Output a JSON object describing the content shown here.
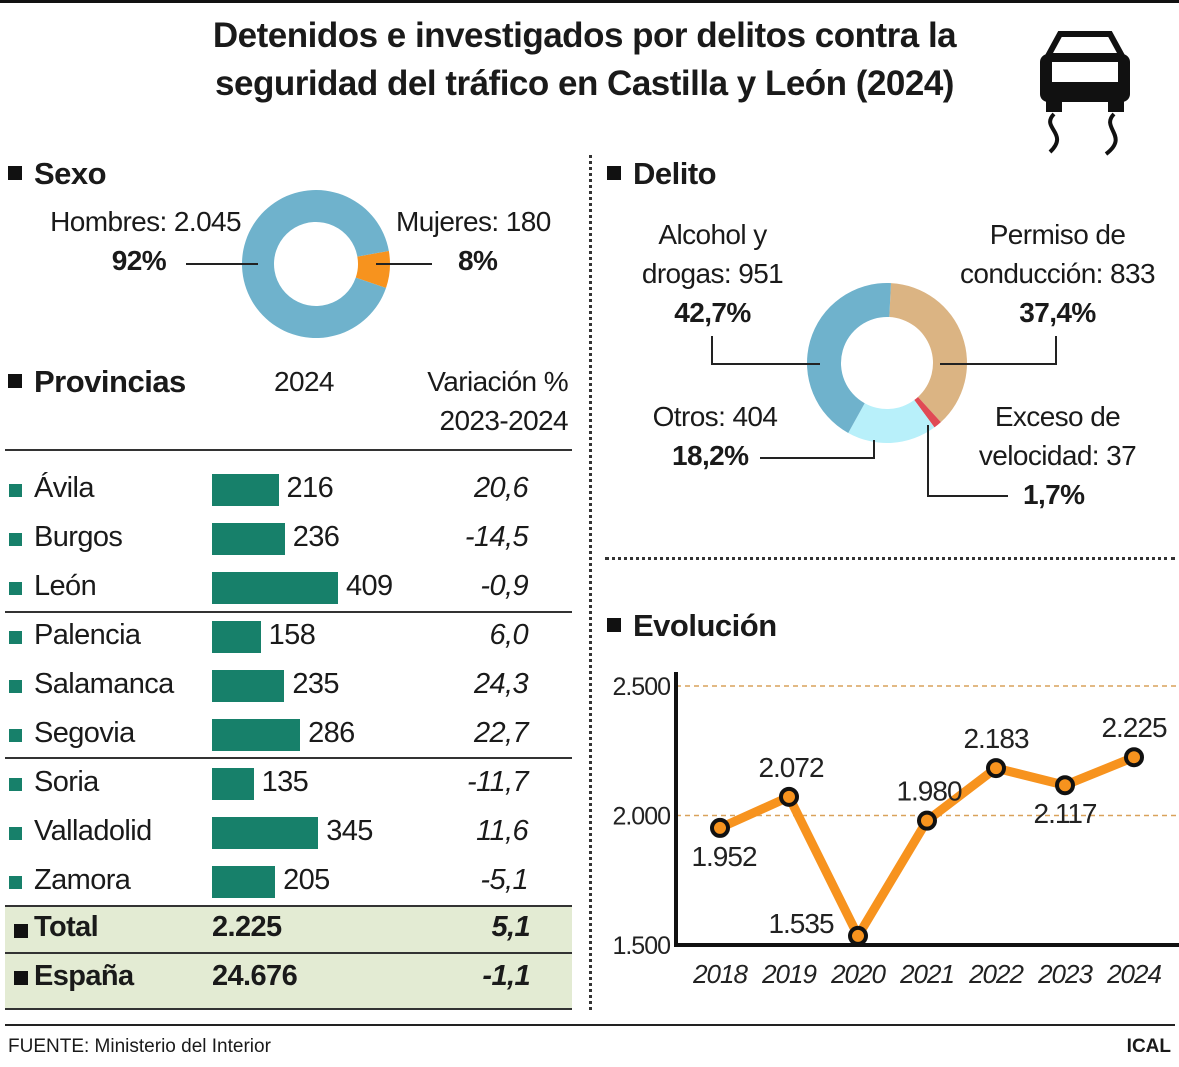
{
  "title": [
    "Detenidos e investigados por delitos contra la",
    "seguridad del tráfico en Castilla y León (2024)"
  ],
  "icons": {
    "header": "car-skidding-icon"
  },
  "colors": {
    "bar": "#17806a",
    "line": "#f7931e",
    "sexo_hombres": "#6fb2cc",
    "sexo_mujeres": "#f7931e",
    "alcohol": "#6fb2cc",
    "permiso": "#dbb483",
    "exceso": "#e04a55",
    "otros": "#b8f0fa",
    "total_bg": "#e3ebd3"
  },
  "sexo": {
    "heading": "Sexo",
    "hombres_label": "Hombres: 2.045",
    "hombres_pct": "92%",
    "mujeres_label": "Mujeres: 180",
    "mujeres_pct": "8%"
  },
  "provincias": {
    "heading": "Provincias",
    "col_year": "2024",
    "col_var": [
      "Variación %",
      "2023-2024"
    ],
    "rows": [
      {
        "name": "Ávila",
        "value": 216,
        "value_label": "216",
        "var": "20,6"
      },
      {
        "name": "Burgos",
        "value": 236,
        "value_label": "236",
        "var": "-14,5"
      },
      {
        "name": "León",
        "value": 409,
        "value_label": "409",
        "var": "-0,9"
      },
      {
        "name": "Palencia",
        "value": 158,
        "value_label": "158",
        "var": "6,0"
      },
      {
        "name": "Salamanca",
        "value": 235,
        "value_label": "235",
        "var": "24,3"
      },
      {
        "name": "Segovia",
        "value": 286,
        "value_label": "286",
        "var": "22,7"
      },
      {
        "name": "Soria",
        "value": 135,
        "value_label": "135",
        "var": "-11,7"
      },
      {
        "name": "Valladolid",
        "value": 345,
        "value_label": "345",
        "var": "11,6"
      },
      {
        "name": "Zamora",
        "value": 205,
        "value_label": "205",
        "var": "-5,1"
      }
    ],
    "totals": [
      {
        "name": "Total",
        "value": "2.225",
        "var": "5,1"
      },
      {
        "name": "España",
        "value": "24.676",
        "var": "-1,1"
      }
    ]
  },
  "delito": {
    "heading": "Delito",
    "alcohol": [
      "Alcohol y",
      "drogas: 951",
      "42,7%"
    ],
    "permiso": [
      "Permiso de",
      "conducción: 833",
      "37,4%"
    ],
    "otros": [
      "Otros: 404",
      "18,2%"
    ],
    "exceso": [
      "Exceso de",
      "velocidad: 37",
      "1,7%"
    ]
  },
  "chart_data": [
    {
      "type": "pie",
      "title": "Sexo",
      "subtitle": "2024",
      "categories": [
        "Hombres",
        "Mujeres"
      ],
      "values": [
        2045,
        180
      ],
      "percent": [
        92,
        8
      ]
    },
    {
      "type": "pie",
      "title": "Delito",
      "categories": [
        "Permiso de conducción",
        "Exceso de velocidad",
        "Otros",
        "Alcohol y drogas"
      ],
      "values": [
        833,
        37,
        404,
        951
      ],
      "percent": [
        37.4,
        1.7,
        18.2,
        42.7
      ]
    },
    {
      "type": "bar",
      "title": "Provincias",
      "categories": [
        "Ávila",
        "Burgos",
        "León",
        "Palencia",
        "Salamanca",
        "Segovia",
        "Soria",
        "Valladolid",
        "Zamora"
      ],
      "values": [
        216,
        236,
        409,
        158,
        235,
        286,
        135,
        345,
        205
      ]
    },
    {
      "type": "line",
      "title": "Evolución",
      "x": [
        "2018",
        "2019",
        "2020",
        "2021",
        "2022",
        "2023",
        "2024"
      ],
      "y": [
        1952,
        2072,
        1535,
        1980,
        2183,
        2117,
        2225
      ],
      "labels": [
        "1.952",
        "2.072",
        "1.535",
        "1.980",
        "2.183",
        "2.117",
        "2.225"
      ],
      "ylim": [
        1500,
        2500
      ],
      "yticks": [
        "1.500",
        "2.000",
        "2.500"
      ],
      "grid": true
    }
  ],
  "evolucion": {
    "heading": "Evolución"
  },
  "footer": {
    "source": "FUENTE: Ministerio del Interior",
    "brand": "ICAL"
  }
}
